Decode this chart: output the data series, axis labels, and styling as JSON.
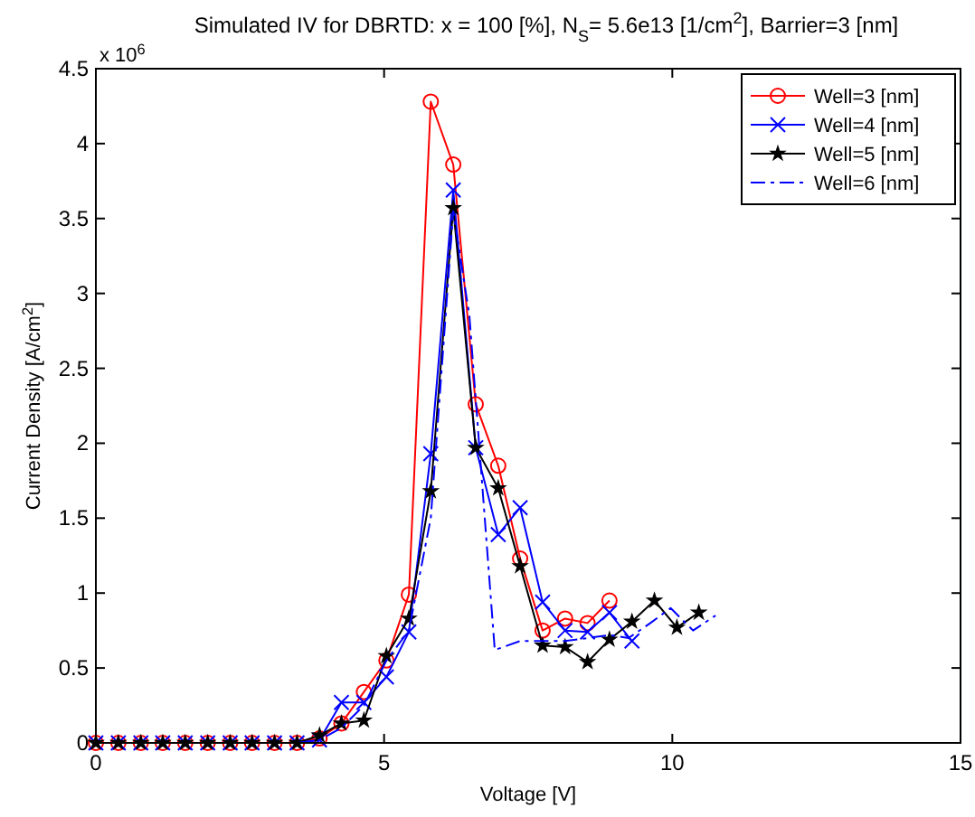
{
  "chart_data": {
    "type": "line",
    "title": "Simulated IV for DBRTD: x = 100 [%], N$_{S}$= 5.6e13 [1/cm$^{2}$], Barrier=3 [nm]",
    "xlabel": "Voltage [V]",
    "ylabel": "Current Density [A/cm$^{2}$]",
    "annotations": [
      "x 10$^{6}$"
    ],
    "x": [
      0,
      0.39,
      0.78,
      1.16,
      1.55,
      1.94,
      2.33,
      2.71,
      3.1,
      3.49,
      3.88,
      4.26,
      4.65,
      5.04,
      5.43,
      5.81,
      6.2,
      6.59,
      6.98,
      7.36,
      7.75,
      8.14,
      8.53,
      8.91,
      9.3,
      9.69,
      10.08,
      10.46
    ],
    "xlim": [
      0,
      15
    ],
    "xticks": [
      0,
      5,
      10,
      15
    ],
    "ylim": [
      0,
      4.5
    ],
    "yticks": [
      0,
      0.5,
      1,
      1.5,
      2,
      2.5,
      3,
      3.5,
      4,
      4.5
    ],
    "grid": false,
    "legend": "top right",
    "series": [
      {
        "name": "Well=3 [nm]",
        "color": "#ff0000",
        "marker": "circle",
        "line_style": "solid",
        "x": [
          0,
          0.39,
          0.78,
          1.16,
          1.55,
          1.94,
          2.33,
          2.71,
          3.1,
          3.49,
          3.88,
          4.26,
          4.65,
          5.04,
          5.43,
          5.81,
          6.2,
          6.59,
          6.98,
          7.36,
          7.75,
          8.14,
          8.53,
          8.91
        ],
        "values": [
          0,
          0,
          0,
          0,
          0,
          0,
          0,
          0,
          0,
          0,
          0.03,
          0.13,
          0.34,
          0.55,
          0.99,
          4.28,
          3.86,
          2.26,
          1.85,
          1.23,
          0.75,
          0.83,
          0.8,
          0.95
        ]
      },
      {
        "name": "Well=4 [nm]",
        "color": "#0000ff",
        "marker": "cross",
        "line_style": "solid",
        "x": [
          0,
          0.39,
          0.78,
          1.16,
          1.55,
          1.94,
          2.33,
          2.71,
          3.1,
          3.49,
          3.88,
          4.26,
          4.65,
          5.04,
          5.43,
          5.81,
          6.2,
          6.59,
          6.98,
          7.36,
          7.75,
          8.14,
          8.53,
          8.91,
          9.3
        ],
        "values": [
          0,
          0,
          0,
          0,
          0,
          0,
          0,
          0,
          0,
          0,
          0.02,
          0.27,
          0.27,
          0.44,
          0.74,
          1.93,
          3.69,
          1.97,
          1.39,
          1.57,
          0.94,
          0.75,
          0.74,
          0.87,
          0.68
        ]
      },
      {
        "name": "Well=5 [nm]",
        "color": "#000000",
        "marker": "star",
        "line_style": "solid",
        "values": [
          0,
          0,
          0,
          0,
          0,
          0,
          0,
          0,
          0,
          0,
          0.05,
          0.13,
          0.15,
          0.58,
          0.83,
          1.68,
          3.57,
          1.97,
          1.7,
          1.18,
          0.65,
          0.64,
          0.54,
          0.69,
          0.81,
          0.95,
          0.77,
          0.87
        ]
      },
      {
        "name": "Well=6 [nm]",
        "color": "#0000ff",
        "marker": "none",
        "line_style": "dashdot",
        "x": [
          0,
          0.39,
          0.78,
          1.16,
          1.55,
          1.94,
          2.33,
          2.71,
          3.1,
          3.49,
          3.88,
          4.26,
          4.65,
          5.04,
          5.43,
          5.81,
          6.2,
          6.48,
          6.92,
          7.36,
          7.75,
          8.14,
          8.53,
          8.91,
          9.24,
          9.62,
          9.97,
          10.36,
          10.75
        ],
        "values": [
          0,
          0,
          0,
          0,
          0,
          0,
          0,
          0,
          0,
          0,
          0.02,
          0.1,
          0.25,
          0.55,
          0.75,
          1.5,
          3.55,
          2.85,
          0.62,
          0.68,
          0.68,
          0.68,
          0.7,
          0.72,
          0.7,
          0.8,
          0.9,
          0.75,
          0.85
        ]
      }
    ]
  }
}
